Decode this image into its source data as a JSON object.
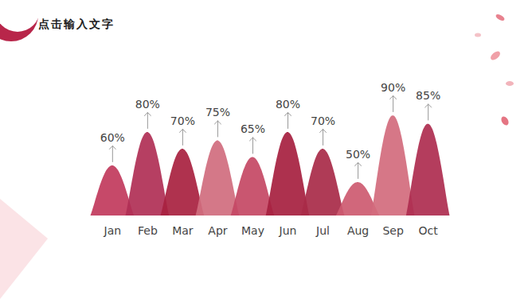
{
  "chart_data": {
    "type": "area",
    "title": "点击输入文字",
    "categories": [
      "Jan",
      "Feb",
      "Mar",
      "Apr",
      "May",
      "Jun",
      "Jul",
      "Aug",
      "Sep",
      "Oct"
    ],
    "values": [
      60,
      80,
      70,
      75,
      65,
      80,
      70,
      50,
      90,
      85
    ],
    "value_labels": [
      "60%",
      "80%",
      "70%",
      "75%",
      "65%",
      "80%",
      "70%",
      "50%",
      "90%",
      "85%"
    ],
    "colors": [
      "#c13a5c",
      "#b02f55",
      "#a8213f",
      "#d06c7e",
      "#c44864",
      "#a61f3f",
      "#a82a48",
      "#cd5a70",
      "#d36b7d",
      "#ae2d4f"
    ],
    "ylim": [
      30,
      100
    ],
    "data_labels": true,
    "tick_labels": "x"
  }
}
